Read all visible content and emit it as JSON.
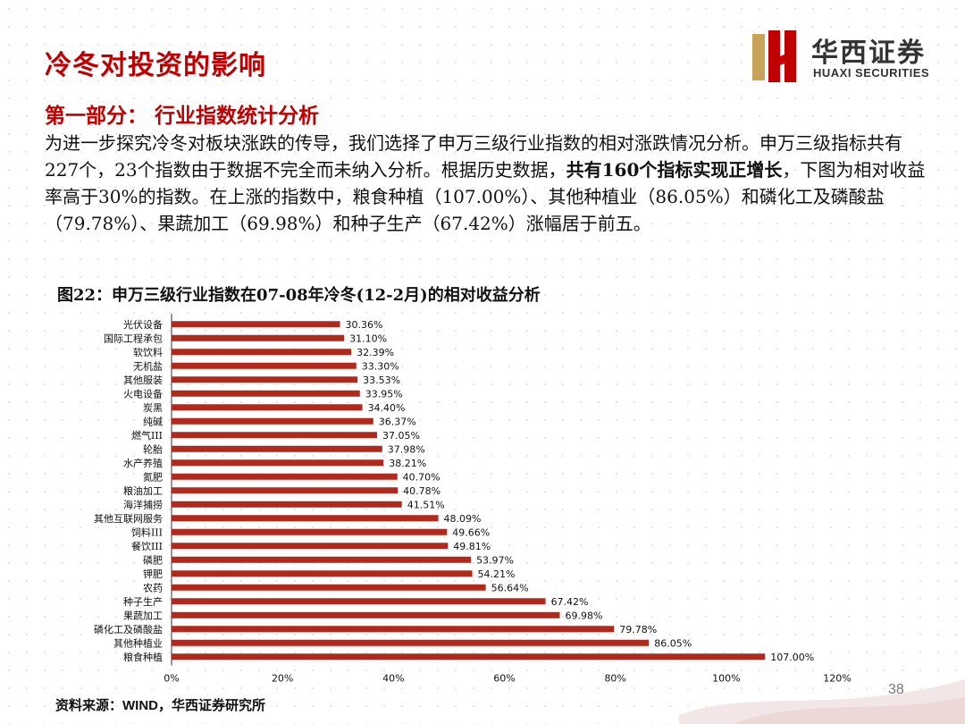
{
  "title": "冷冬对投资的影响",
  "logo": {
    "cn": "华西证券",
    "en": "HUAXI SECURITIES"
  },
  "subtitle": "第一部分：  行业指数统计分析",
  "body": {
    "p1": "为进一步探究冷冬对板块涨跌的传导，我们选择了申万三级行业指数的相对涨跌情况分析。申万三级指标共有227个，23个指数由于数据不完全而未纳入分析。根据历史数据，",
    "bold": "共有160个指标实现正增长",
    "p2": "，下图为相对收益率高于30%的指数。在上涨的指数中，粮食种植（107.00%）、其他种植业（86.05%）和磷化工及磷酸盐（79.78%）、果蔬加工（69.98%）和种子生产（67.42%）涨幅居于前五。"
  },
  "chart_title": "图22：申万三级行业指数在07-08年冷冬(12-2月)的相对收益分析",
  "source": "资料来源：WIND，华西证券研究所",
  "page_number": "38",
  "colors": {
    "accent": "#c00000",
    "bar": "#b0291c"
  },
  "chart_data": {
    "type": "bar",
    "orientation": "horizontal",
    "categories": [
      "光伏设备",
      "国际工程承包",
      "软饮料",
      "无机盐",
      "其他服装",
      "火电设备",
      "炭黑",
      "纯碱",
      "燃气III",
      "轮胎",
      "水产养殖",
      "氮肥",
      "粮油加工",
      "海洋捕捞",
      "其他互联网服务",
      "饲料III",
      "餐饮III",
      "磷肥",
      "钾肥",
      "农药",
      "种子生产",
      "果蔬加工",
      "磷化工及磷酸盐",
      "其他种植业",
      "粮食种植"
    ],
    "values": [
      30.36,
      31.1,
      32.39,
      33.3,
      33.53,
      33.95,
      34.4,
      36.37,
      37.05,
      37.98,
      38.21,
      40.7,
      40.78,
      41.51,
      48.09,
      49.66,
      49.81,
      53.97,
      54.21,
      56.64,
      67.42,
      69.98,
      79.78,
      86.05,
      107.0
    ],
    "value_labels": [
      "30.36%",
      "31.10%",
      "32.39%",
      "33.30%",
      "33.53%",
      "33.95%",
      "34.40%",
      "36.37%",
      "37.05%",
      "37.98%",
      "38.21%",
      "40.70%",
      "40.78%",
      "41.51%",
      "48.09%",
      "49.66%",
      "49.81%",
      "53.97%",
      "54.21%",
      "56.64%",
      "67.42%",
      "69.98%",
      "79.78%",
      "86.05%",
      "107.00%"
    ],
    "xlim": [
      0,
      120
    ],
    "xticks": [
      0,
      20,
      40,
      60,
      80,
      100,
      120
    ],
    "xtick_labels": [
      "0%",
      "20%",
      "40%",
      "60%",
      "80%",
      "100%",
      "120%"
    ],
    "grid": false,
    "legend": "none"
  }
}
